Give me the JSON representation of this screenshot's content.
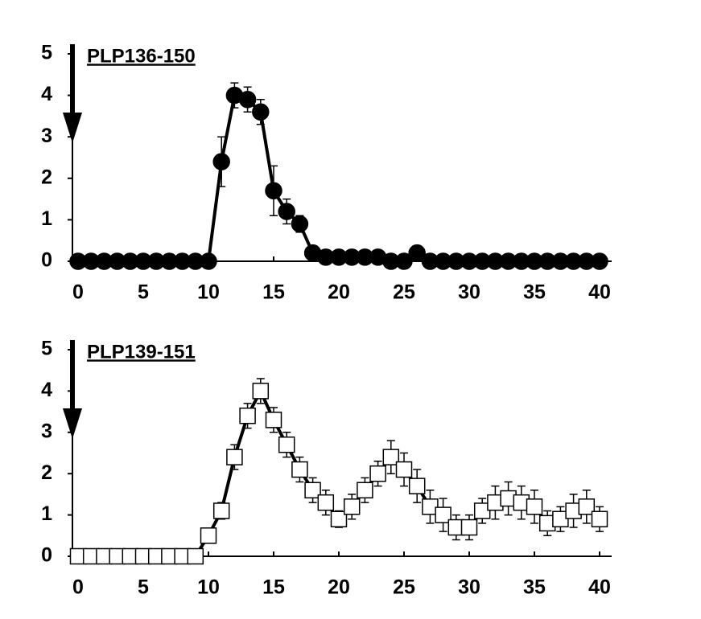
{
  "chart_data": [
    {
      "type": "line",
      "title": "PLP136-150",
      "marker": "circle",
      "color": "#000000",
      "marker_fill": "#000000",
      "x": [
        0,
        1,
        2,
        3,
        4,
        5,
        6,
        7,
        8,
        9,
        10,
        11,
        12,
        13,
        14,
        15,
        16,
        17,
        18,
        19,
        20,
        21,
        22,
        23,
        24,
        25,
        26,
        27,
        28,
        29,
        30,
        31,
        32,
        33,
        34,
        35,
        36,
        37,
        38,
        39,
        40
      ],
      "values": [
        0,
        0,
        0,
        0,
        0,
        0,
        0,
        0,
        0,
        0,
        0,
        2.4,
        4.0,
        3.9,
        3.6,
        1.7,
        1.2,
        0.9,
        0.2,
        0.1,
        0.1,
        0.1,
        0.1,
        0.1,
        0,
        0,
        0.2,
        0,
        0,
        0,
        0,
        0,
        0,
        0,
        0,
        0,
        0,
        0,
        0,
        0,
        0
      ],
      "errors": [
        0,
        0,
        0,
        0,
        0,
        0,
        0,
        0,
        0,
        0,
        0,
        0.6,
        0.3,
        0.3,
        0.3,
        0.6,
        0.3,
        0.2,
        0.1,
        0,
        0,
        0,
        0,
        0,
        0,
        0,
        0,
        0,
        0,
        0,
        0,
        0,
        0,
        0,
        0,
        0,
        0,
        0,
        0,
        0,
        0
      ],
      "xlim": [
        0,
        40
      ],
      "xticks": [
        0,
        5,
        10,
        15,
        20,
        25,
        30,
        35,
        40
      ],
      "ylim": [
        0,
        5
      ],
      "yticks": [
        0,
        1,
        2,
        3,
        4,
        5
      ]
    },
    {
      "type": "line",
      "title": "PLP139-151",
      "marker": "square",
      "color": "#000000",
      "marker_fill": "#ffffff",
      "x": [
        0,
        1,
        2,
        3,
        4,
        5,
        6,
        7,
        8,
        9,
        10,
        11,
        12,
        13,
        14,
        15,
        16,
        17,
        18,
        19,
        20,
        21,
        22,
        23,
        24,
        25,
        26,
        27,
        28,
        29,
        30,
        31,
        32,
        33,
        34,
        35,
        36,
        37,
        38,
        39,
        40
      ],
      "values": [
        0,
        0,
        0,
        0,
        0,
        0,
        0,
        0,
        0,
        0,
        0.5,
        1.1,
        2.4,
        3.4,
        4.0,
        3.3,
        2.7,
        2.1,
        1.6,
        1.3,
        0.9,
        1.2,
        1.6,
        2.0,
        2.4,
        2.1,
        1.7,
        1.2,
        1.0,
        0.7,
        0.7,
        1.1,
        1.3,
        1.4,
        1.3,
        1.2,
        0.8,
        0.9,
        1.1,
        1.2,
        0.9
      ],
      "errors": [
        0,
        0,
        0,
        0,
        0,
        0,
        0,
        0,
        0,
        0,
        0.1,
        0.2,
        0.3,
        0.3,
        0.3,
        0.3,
        0.3,
        0.3,
        0.3,
        0.3,
        0.2,
        0.3,
        0.3,
        0.3,
        0.4,
        0.4,
        0.4,
        0.4,
        0.4,
        0.3,
        0.3,
        0.3,
        0.4,
        0.4,
        0.4,
        0.4,
        0.3,
        0.3,
        0.4,
        0.4,
        0.3
      ],
      "xlim": [
        0,
        40
      ],
      "xticks": [
        0,
        5,
        10,
        15,
        20,
        25,
        30,
        35,
        40
      ],
      "ylim": [
        0,
        5
      ],
      "yticks": [
        0,
        1,
        2,
        3,
        4,
        5
      ]
    }
  ]
}
